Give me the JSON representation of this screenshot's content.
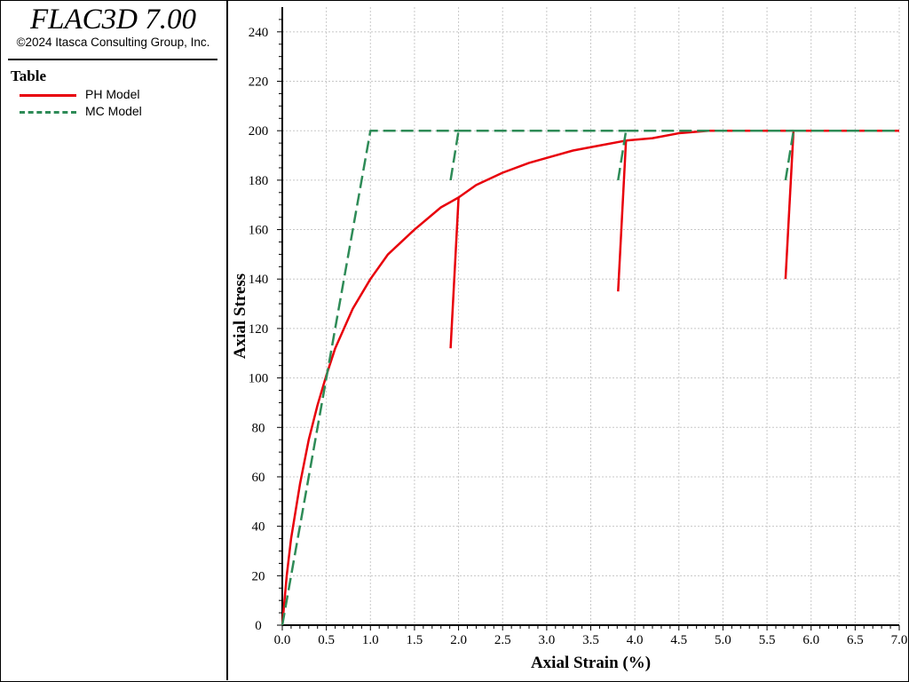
{
  "app": {
    "title": "FLAC3D 7.00",
    "copyright": "©2024 Itasca Consulting Group, Inc."
  },
  "legend": {
    "heading": "Table",
    "entries": [
      {
        "label": "PH Model",
        "color": "#e8000b",
        "style": "solid"
      },
      {
        "label": "MC Model",
        "color": "#2e8b57",
        "style": "dashed"
      }
    ]
  },
  "chart_data": {
    "type": "line",
    "xlabel": "Axial Strain (%)",
    "ylabel": "Axial Stress",
    "xlim": [
      0,
      7.0
    ],
    "ylim": [
      0,
      250
    ],
    "xticks": [
      "0.0",
      "0.5",
      "1.0",
      "1.5",
      "2.0",
      "2.5",
      "3.0",
      "3.5",
      "4.0",
      "4.5",
      "5.0",
      "5.5",
      "6.0",
      "6.5",
      "7.0"
    ],
    "yticks": [
      "0",
      "20",
      "40",
      "60",
      "80",
      "100",
      "120",
      "140",
      "160",
      "180",
      "200",
      "220",
      "240"
    ],
    "grid": true,
    "legend_placement": "left panel",
    "series": [
      {
        "name": "PH Model",
        "color": "#e8000b",
        "style": "solid",
        "segments": [
          {
            "x": [
              0.0,
              0.05,
              0.1,
              0.2,
              0.3,
              0.4,
              0.5,
              0.6,
              0.8,
              1.0,
              1.2,
              1.5,
              1.8,
              2.0
            ],
            "y": [
              0,
              20,
              35,
              57,
              75,
              89,
              101,
              112,
              128,
              140,
              150,
              160,
              169,
              173
            ]
          },
          {
            "x": [
              1.91,
              2.0
            ],
            "y": [
              112,
              173
            ]
          },
          {
            "x": [
              2.0,
              2.2,
              2.5,
              2.8,
              3.0,
              3.3,
              3.6,
              3.9
            ],
            "y": [
              173,
              178,
              183,
              187,
              189,
              192,
              194,
              196
            ]
          },
          {
            "x": [
              3.81,
              3.9
            ],
            "y": [
              135,
              196
            ]
          },
          {
            "x": [
              3.9,
              4.2,
              4.5,
              4.84,
              5.0,
              5.3,
              5.6,
              5.8
            ],
            "y": [
              196,
              197,
              199,
              200,
              200,
              200,
              200,
              200
            ]
          },
          {
            "x": [
              5.71,
              5.8
            ],
            "y": [
              140,
              200
            ]
          },
          {
            "x": [
              5.8,
              6.5,
              7.0
            ],
            "y": [
              200,
              200,
              200
            ]
          }
        ]
      },
      {
        "name": "MC Model",
        "color": "#2e8b57",
        "style": "dashed",
        "segments": [
          {
            "x": [
              0.0,
              1.0,
              2.0
            ],
            "y": [
              0,
              200,
              200
            ]
          },
          {
            "x": [
              1.91,
              2.0
            ],
            "y": [
              180,
              200
            ]
          },
          {
            "x": [
              2.0,
              3.9
            ],
            "y": [
              200,
              200
            ]
          },
          {
            "x": [
              3.81,
              3.9
            ],
            "y": [
              180,
              200
            ]
          },
          {
            "x": [
              3.9,
              5.8
            ],
            "y": [
              200,
              200
            ]
          },
          {
            "x": [
              5.71,
              5.8
            ],
            "y": [
              180,
              200
            ]
          },
          {
            "x": [
              5.8,
              7.0
            ],
            "y": [
              200,
              200
            ]
          }
        ]
      }
    ]
  }
}
